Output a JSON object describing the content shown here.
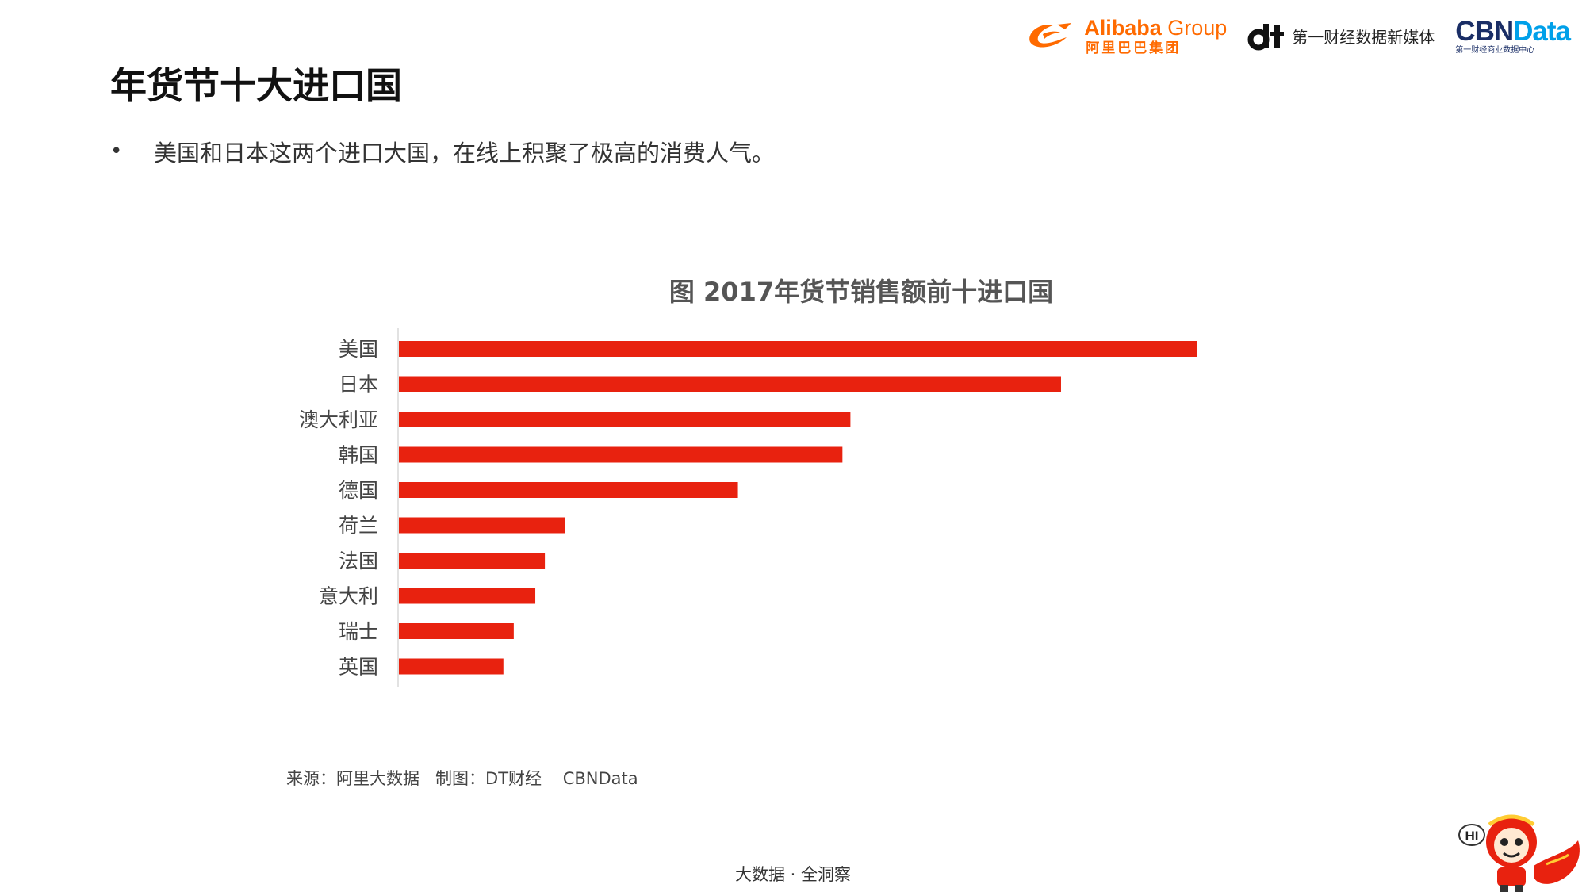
{
  "header": {
    "alibaba": {
      "name_bold": "Alibaba",
      "name_light": " Group",
      "cn": "阿里巴巴集团"
    },
    "dt": {
      "text": "第一财经数据新媒体"
    },
    "cbn": {
      "name_a": "CBN",
      "name_b": "Data",
      "sub": "第一财经商业数据中心"
    }
  },
  "title": "年货节十大进口国",
  "bullet": {
    "marker": "•",
    "text": "美国和日本这两个进口大国，在线上积聚了极高的消费人气。"
  },
  "chart_data": {
    "type": "bar",
    "orientation": "horizontal",
    "title": "图 2017年货节销售额前十进口国",
    "categories": [
      "美国",
      "日本",
      "澳大利亚",
      "韩国",
      "德国",
      "荷兰",
      "法国",
      "意大利",
      "瑞士",
      "英国"
    ],
    "values": [
      100,
      83,
      56.6,
      55.6,
      42.5,
      20.8,
      18.3,
      17.1,
      14.4,
      13.1
    ],
    "xlabel": "",
    "ylabel": "",
    "xlim": [
      0,
      100
    ],
    "grid": false,
    "legend": "none",
    "bar_color": "#e8220f"
  },
  "source_line": "来源：阿里大数据   制图：DT财经    CBNData",
  "footer": "大数据 · 全洞察",
  "mascot": {
    "bubble": "HI"
  },
  "colors": {
    "accent_orange": "#ff6a00",
    "cbn_blue": "#1a2e66",
    "cbn_cyan": "#00a0e9",
    "bar_red": "#e8220f"
  }
}
